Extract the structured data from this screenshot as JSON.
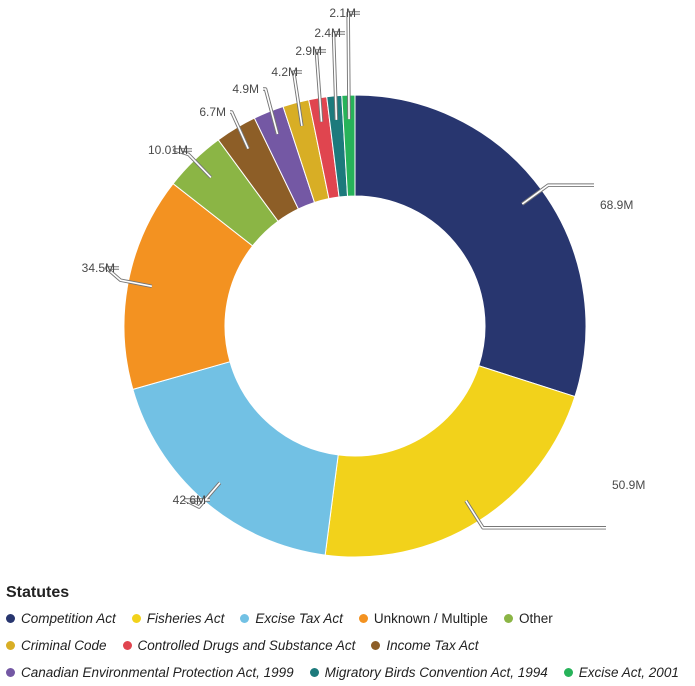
{
  "chart_data": {
    "type": "donut",
    "title": "",
    "legend_title": "Statutes",
    "legend_position": "bottom",
    "series": [
      {
        "name": "Competition Act",
        "value": 68.9,
        "label": "68.9M",
        "color": "#28366f",
        "italic": true
      },
      {
        "name": "Fisheries Act",
        "value": 50.9,
        "label": "50.9M",
        "color": "#f2d21b",
        "italic": true
      },
      {
        "name": "Excise Tax Act",
        "value": 42.6,
        "label": "42.6M",
        "color": "#72c1e4",
        "italic": true
      },
      {
        "name": "Unknown / Multiple",
        "value": 34.5,
        "label": "34.5M",
        "color": "#f39221",
        "italic": false
      },
      {
        "name": "Other",
        "value": 10.01,
        "label": "10.01M",
        "color": "#8bb545",
        "italic": false
      },
      {
        "name": "Income Tax Act",
        "value": 6.7,
        "label": "6.7M",
        "color": "#8d5e27",
        "italic": true
      },
      {
        "name": "Canadian Environmental Protection Act, 1999",
        "value": 4.9,
        "label": "4.9M",
        "color": "#7458a4",
        "italic": true
      },
      {
        "name": "Criminal Code",
        "value": 4.2,
        "label": "4.2M",
        "color": "#d8ae25",
        "italic": true
      },
      {
        "name": "Controlled Drugs and Substance Act",
        "value": 2.9,
        "label": "2.9M",
        "color": "#e0454f",
        "italic": true
      },
      {
        "name": "Migratory Birds Convention Act, 1994",
        "value": 2.4,
        "label": "2.4M",
        "color": "#1d7a7c",
        "italic": true
      },
      {
        "name": "Excise Act, 2001",
        "value": 2.1,
        "label": "2.1M",
        "color": "#27b35a",
        "italic": true
      }
    ]
  },
  "legend_rows": [
    [
      "Competition Act",
      "Fisheries Act",
      "Excise Tax Act",
      "Unknown / Multiple",
      "Other"
    ],
    [
      "Criminal Code",
      "Controlled Drugs and Substance Act",
      "Income Tax Act"
    ],
    [
      "Canadian Environmental Protection Act, 1999",
      "Migratory Birds Convention Act, 1994",
      "Excise Act, 2001"
    ]
  ]
}
